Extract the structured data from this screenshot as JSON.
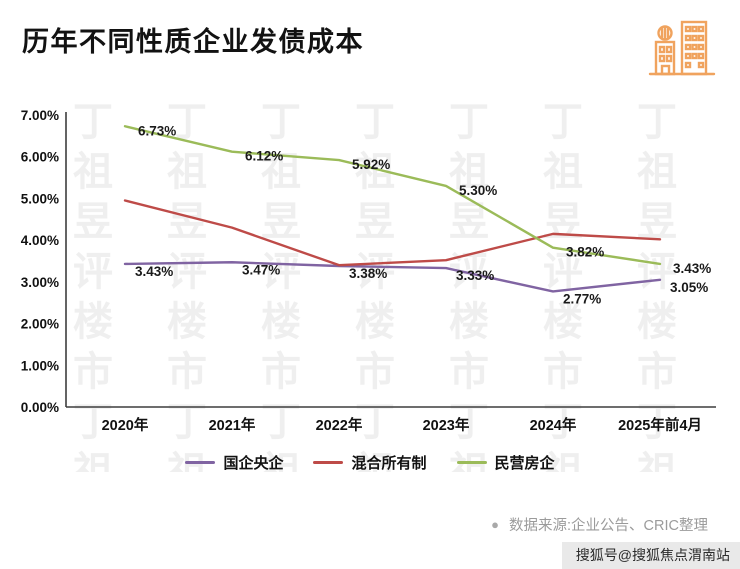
{
  "page": {
    "title": "历年不同性质企业发债成本",
    "source_bullet": "●",
    "source_note": "数据来源:企业公告、CRIC整理",
    "bottom_watermark": "搜狐号@搜狐焦点渭南站",
    "background_watermark": "丁祖昱评楼市"
  },
  "icons": {
    "building_icon_color": "#F0A35E"
  },
  "chart_data": {
    "type": "line",
    "title": "历年不同性质企业发债成本",
    "categories": [
      "2020年",
      "2021年",
      "2022年",
      "2023年",
      "2024年",
      "2025年前4月"
    ],
    "y_axis": {
      "min": 0,
      "max": 7,
      "step": 1,
      "tick_labels": [
        "0.00%",
        "1.00%",
        "2.00%",
        "3.00%",
        "4.00%",
        "5.00%",
        "6.00%",
        "7.00%"
      ]
    },
    "grid": false,
    "legend_position": "bottom",
    "series": [
      {
        "name": "国企央企",
        "color": "#8064A2",
        "values": [
          3.43,
          3.47,
          3.38,
          3.33,
          2.77,
          3.05
        ],
        "labels": [
          "3.43%",
          "3.47%",
          "3.38%",
          "3.33%",
          "2.77%",
          "3.05%"
        ],
        "label_offset": {
          "dx": 10,
          "dy": 12
        }
      },
      {
        "name": "混合所有制",
        "color": "#BE4B48",
        "values": [
          4.95,
          4.3,
          3.4,
          3.52,
          4.15,
          4.02
        ],
        "labels": [
          null,
          null,
          null,
          null,
          null,
          null
        ],
        "label_offset": {
          "dx": 10,
          "dy": 12
        }
      },
      {
        "name": "民营房企",
        "color": "#9BBB59",
        "values": [
          6.73,
          6.12,
          5.92,
          5.3,
          3.82,
          3.43
        ],
        "labels": [
          "6.73%",
          "6.12%",
          "5.92%",
          "5.30%",
          "3.82%",
          "3.43%"
        ],
        "label_offset": {
          "dx": 13,
          "dy": 9
        }
      }
    ]
  }
}
